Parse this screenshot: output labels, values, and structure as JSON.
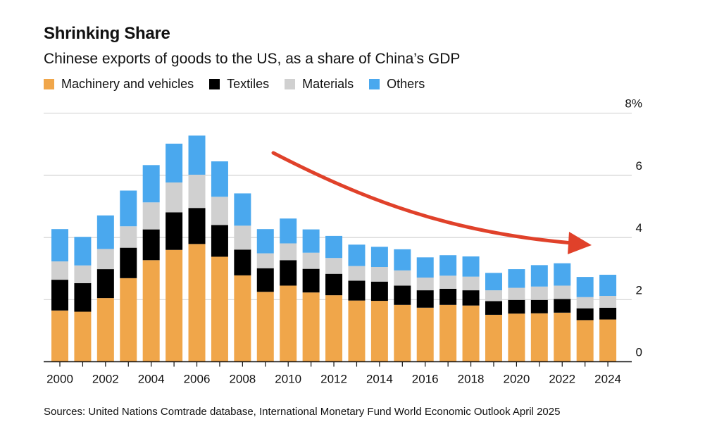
{
  "chart_data": {
    "type": "bar",
    "stacked": true,
    "title": "Shrinking Share",
    "subtitle": "Chinese exports of goods to the US, as a share of China’s GDP",
    "xlabel": "",
    "ylabel": "",
    "ylim": [
      0,
      8
    ],
    "y_ticks": [
      "0",
      "2",
      "4",
      "6",
      "8%"
    ],
    "y_axis_side": "right",
    "grid": true,
    "legend_position": "top-left",
    "categories": [
      2000,
      2001,
      2002,
      2003,
      2004,
      2005,
      2006,
      2007,
      2008,
      2009,
      2010,
      2011,
      2012,
      2013,
      2014,
      2015,
      2016,
      2017,
      2018,
      2019,
      2020,
      2021,
      2022,
      2023,
      2024
    ],
    "x_tick_labels": [
      "2000",
      "2002",
      "2004",
      "2006",
      "2008",
      "2010",
      "2012",
      "2014",
      "2016",
      "2018",
      "2020",
      "2022",
      "2024"
    ],
    "series": [
      {
        "name": "Machinery and vehicles",
        "color": "#f0a64a",
        "values": [
          1.65,
          1.61,
          2.05,
          2.69,
          3.27,
          3.6,
          3.79,
          3.38,
          2.78,
          2.25,
          2.45,
          2.23,
          2.14,
          1.97,
          1.96,
          1.83,
          1.74,
          1.83,
          1.81,
          1.51,
          1.55,
          1.56,
          1.58,
          1.34,
          1.36
        ]
      },
      {
        "name": "Textiles",
        "color": "#000000",
        "values": [
          0.99,
          0.92,
          0.93,
          0.98,
          0.99,
          1.21,
          1.16,
          1.02,
          0.83,
          0.76,
          0.82,
          0.76,
          0.69,
          0.64,
          0.62,
          0.62,
          0.56,
          0.52,
          0.49,
          0.44,
          0.44,
          0.43,
          0.44,
          0.38,
          0.38
        ]
      },
      {
        "name": "Materials",
        "color": "#d0d0d0",
        "values": [
          0.59,
          0.57,
          0.65,
          0.69,
          0.87,
          0.96,
          1.07,
          0.91,
          0.77,
          0.48,
          0.54,
          0.52,
          0.51,
          0.47,
          0.47,
          0.49,
          0.41,
          0.42,
          0.44,
          0.35,
          0.39,
          0.43,
          0.43,
          0.36,
          0.38
        ]
      },
      {
        "name": "Others",
        "color": "#4aa8ee",
        "values": [
          1.04,
          0.92,
          1.08,
          1.15,
          1.2,
          1.25,
          1.26,
          1.14,
          1.04,
          0.78,
          0.8,
          0.75,
          0.71,
          0.69,
          0.65,
          0.68,
          0.65,
          0.66,
          0.65,
          0.56,
          0.6,
          0.69,
          0.72,
          0.65,
          0.68
        ]
      }
    ],
    "annotation": {
      "type": "downward-trend-arrow",
      "color": "#e0412a"
    }
  },
  "source": "Sources: United Nations Comtrade database, International Monetary Fund World Economic Outlook April 2025"
}
